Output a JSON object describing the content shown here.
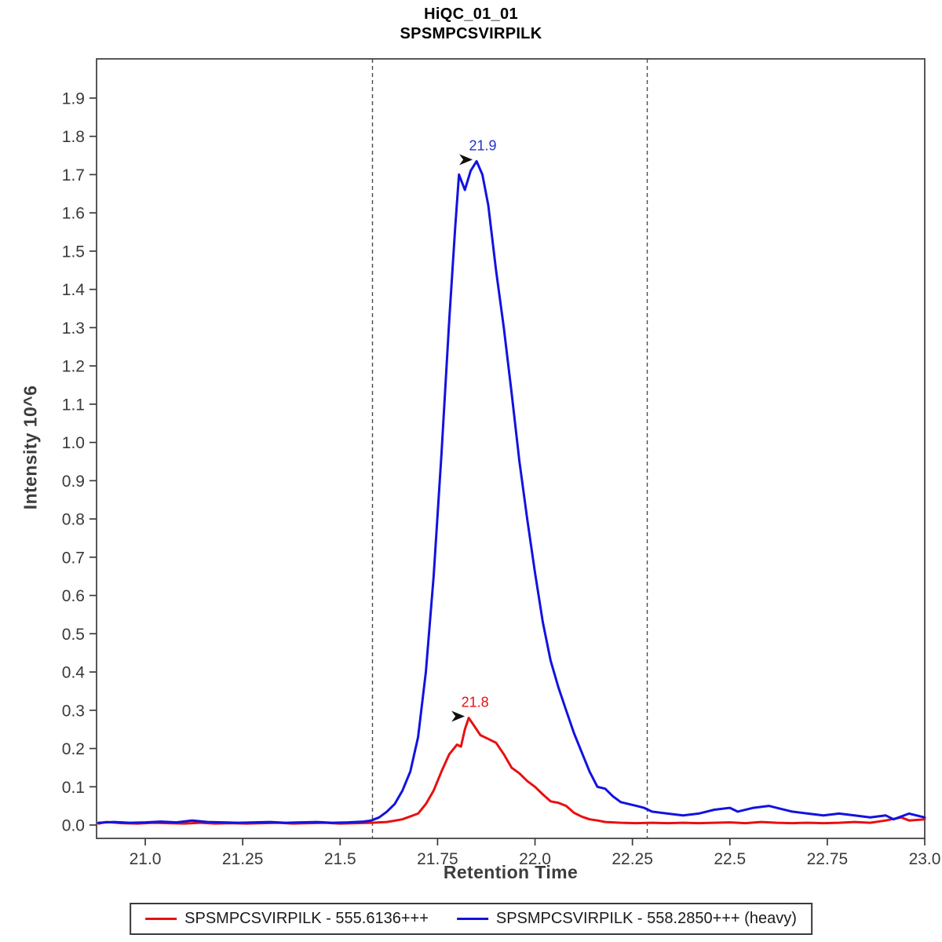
{
  "title": {
    "line1": "HiQC_01_01",
    "line2": "SPSMPCSVIRPILK"
  },
  "legend": {
    "items": [
      {
        "label": "SPSMPCSVIRPILK - 555.6136+++",
        "color": "#e81010"
      },
      {
        "label": "SPSMPCSVIRPILK - 558.2850+++ (heavy)",
        "color": "#1212e0"
      }
    ]
  },
  "chart_data": {
    "type": "line",
    "title": "HiQC_01_01",
    "subtitle": "SPSMPCSVIRPILK",
    "xlabel": "Retention Time",
    "ylabel": "Intensity 10^6",
    "xlim": [
      20.875,
      23.0
    ],
    "ylim": [
      0.0,
      2.0
    ],
    "grid": false,
    "x_ticks": [
      {
        "value": 21.0,
        "label": "21.0"
      },
      {
        "value": 21.25,
        "label": "21.25"
      },
      {
        "value": 21.5,
        "label": "21.5"
      },
      {
        "value": 21.75,
        "label": "21.75"
      },
      {
        "value": 22.0,
        "label": "22.0"
      },
      {
        "value": 22.25,
        "label": "22.25"
      },
      {
        "value": 22.5,
        "label": "22.5"
      },
      {
        "value": 22.75,
        "label": "22.75"
      },
      {
        "value": 23.0,
        "label": "23.0"
      }
    ],
    "y_ticks": [
      {
        "value": 0.0,
        "label": "0.0"
      },
      {
        "value": 0.1,
        "label": "0.1"
      },
      {
        "value": 0.2,
        "label": "0.2"
      },
      {
        "value": 0.3,
        "label": "0.3"
      },
      {
        "value": 0.4,
        "label": "0.4"
      },
      {
        "value": 0.5,
        "label": "0.5"
      },
      {
        "value": 0.6,
        "label": "0.6"
      },
      {
        "value": 0.7,
        "label": "0.7"
      },
      {
        "value": 0.8,
        "label": "0.8"
      },
      {
        "value": 0.9,
        "label": "0.9"
      },
      {
        "value": 1.0,
        "label": "1.0"
      },
      {
        "value": 1.1,
        "label": "1.1"
      },
      {
        "value": 1.2,
        "label": "1.2"
      },
      {
        "value": 1.3,
        "label": "1.3"
      },
      {
        "value": 1.4,
        "label": "1.4"
      },
      {
        "value": 1.5,
        "label": "1.5"
      },
      {
        "value": 1.6,
        "label": "1.6"
      },
      {
        "value": 1.7,
        "label": "1.7"
      },
      {
        "value": 1.8,
        "label": "1.8"
      },
      {
        "value": 1.9,
        "label": "1.9"
      }
    ],
    "peak_boundaries": [
      21.583,
      22.288
    ],
    "peak_annotations": [
      {
        "label": "21.8",
        "x": 21.83,
        "y": 0.28,
        "color": "#e81010"
      },
      {
        "label": "21.9",
        "x": 21.85,
        "y": 1.735,
        "color": "#2233cc"
      }
    ],
    "series": [
      {
        "id": "light",
        "name": "SPSMPCSVIRPILK - 555.6136+++",
        "color": "#e81010",
        "x": [
          20.88,
          20.9,
          20.94,
          20.98,
          21.02,
          21.06,
          21.1,
          21.14,
          21.18,
          21.22,
          21.26,
          21.3,
          21.34,
          21.38,
          21.42,
          21.46,
          21.5,
          21.54,
          21.58,
          21.62,
          21.66,
          21.7,
          21.72,
          21.74,
          21.76,
          21.78,
          21.8,
          21.81,
          21.82,
          21.83,
          21.84,
          21.86,
          21.88,
          21.9,
          21.92,
          21.94,
          21.96,
          21.98,
          22.0,
          22.02,
          22.04,
          22.06,
          22.08,
          22.1,
          22.12,
          22.14,
          22.16,
          22.18,
          22.22,
          22.26,
          22.3,
          22.34,
          22.38,
          22.42,
          22.46,
          22.5,
          22.54,
          22.58,
          22.62,
          22.66,
          22.7,
          22.74,
          22.78,
          22.82,
          22.86,
          22.9,
          22.94,
          22.96,
          23.0
        ],
        "y": [
          0.004,
          0.008,
          0.005,
          0.004,
          0.006,
          0.005,
          0.004,
          0.006,
          0.004,
          0.005,
          0.004,
          0.005,
          0.006,
          0.004,
          0.005,
          0.006,
          0.004,
          0.005,
          0.006,
          0.008,
          0.015,
          0.03,
          0.055,
          0.09,
          0.14,
          0.185,
          0.21,
          0.205,
          0.25,
          0.28,
          0.265,
          0.235,
          0.225,
          0.215,
          0.185,
          0.15,
          0.135,
          0.115,
          0.1,
          0.08,
          0.062,
          0.058,
          0.05,
          0.032,
          0.022,
          0.015,
          0.012,
          0.008,
          0.006,
          0.005,
          0.006,
          0.005,
          0.006,
          0.005,
          0.006,
          0.007,
          0.005,
          0.008,
          0.006,
          0.005,
          0.006,
          0.005,
          0.006,
          0.008,
          0.006,
          0.012,
          0.02,
          0.012,
          0.015
        ]
      },
      {
        "id": "heavy",
        "name": "SPSMPCSVIRPILK - 558.2850+++ (heavy)",
        "color": "#1212e0",
        "x": [
          20.88,
          20.92,
          20.96,
          21.0,
          21.04,
          21.08,
          21.12,
          21.16,
          21.2,
          21.24,
          21.28,
          21.32,
          21.36,
          21.4,
          21.44,
          21.48,
          21.52,
          21.56,
          21.58,
          21.6,
          21.62,
          21.64,
          21.66,
          21.68,
          21.7,
          21.72,
          21.74,
          21.76,
          21.78,
          21.795,
          21.805,
          21.82,
          21.835,
          21.85,
          21.865,
          21.88,
          21.9,
          21.92,
          21.94,
          21.96,
          21.98,
          22.0,
          22.02,
          22.04,
          22.06,
          22.08,
          22.1,
          22.12,
          22.14,
          22.16,
          22.18,
          22.2,
          22.22,
          22.24,
          22.26,
          22.28,
          22.3,
          22.34,
          22.38,
          22.42,
          22.46,
          22.5,
          22.52,
          22.56,
          22.6,
          22.62,
          22.66,
          22.7,
          22.74,
          22.78,
          22.82,
          22.86,
          22.9,
          22.92,
          22.96,
          23.0
        ],
        "y": [
          0.006,
          0.008,
          0.006,
          0.007,
          0.009,
          0.007,
          0.012,
          0.008,
          0.007,
          0.006,
          0.007,
          0.008,
          0.006,
          0.007,
          0.008,
          0.006,
          0.007,
          0.009,
          0.012,
          0.02,
          0.035,
          0.055,
          0.09,
          0.14,
          0.23,
          0.4,
          0.65,
          0.97,
          1.32,
          1.56,
          1.7,
          1.66,
          1.71,
          1.735,
          1.7,
          1.62,
          1.45,
          1.3,
          1.13,
          0.95,
          0.8,
          0.66,
          0.53,
          0.43,
          0.36,
          0.3,
          0.24,
          0.19,
          0.14,
          0.1,
          0.095,
          0.075,
          0.06,
          0.055,
          0.05,
          0.045,
          0.035,
          0.03,
          0.025,
          0.03,
          0.04,
          0.045,
          0.035,
          0.045,
          0.05,
          0.045,
          0.035,
          0.03,
          0.025,
          0.03,
          0.025,
          0.02,
          0.025,
          0.015,
          0.03,
          0.02
        ]
      }
    ]
  }
}
